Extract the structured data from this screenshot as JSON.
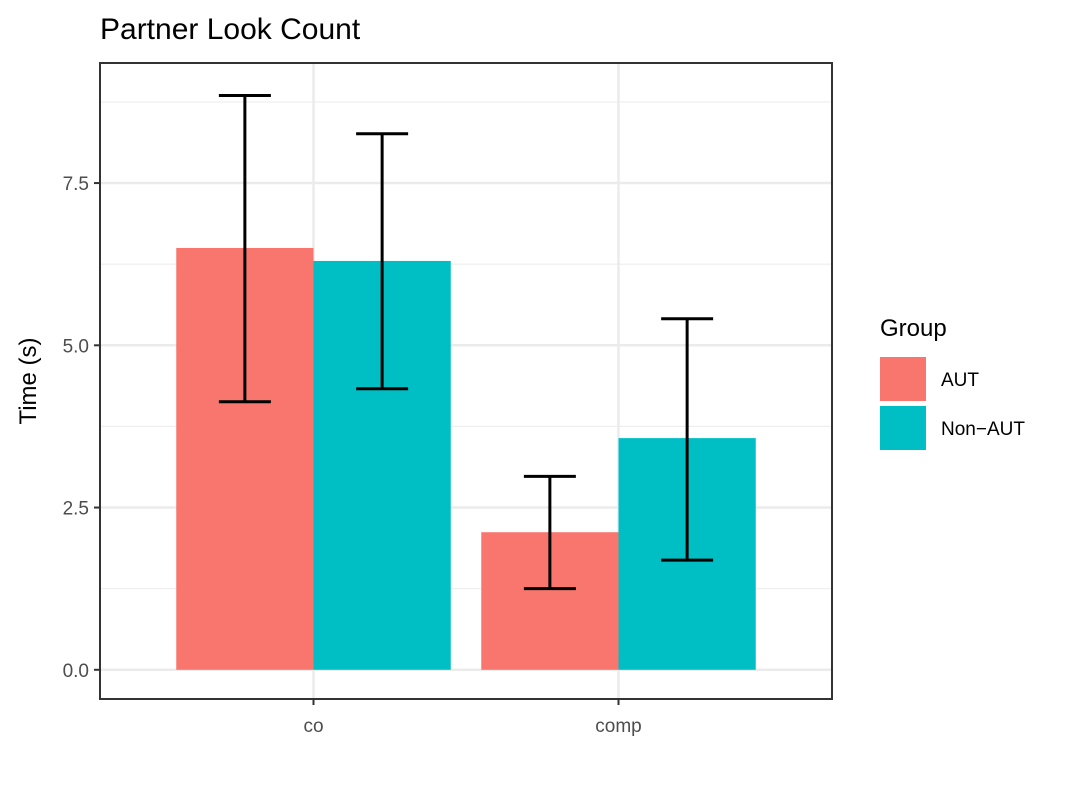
{
  "chart_data": {
    "type": "bar",
    "title": "Partner Look Count",
    "xlabel": "",
    "ylabel": "Time (s)",
    "categories": [
      "co",
      "comp"
    ],
    "series": [
      {
        "name": "AUT",
        "color": "#F8766D",
        "values": [
          6.5,
          2.12
        ],
        "error_low": [
          4.13,
          1.25
        ],
        "error_high": [
          8.85,
          2.98
        ]
      },
      {
        "name": "Non-AUT",
        "color": "#00BFC4",
        "values": [
          6.3,
          3.57
        ],
        "error_low": [
          4.33,
          1.69
        ],
        "error_high": [
          8.26,
          5.41
        ]
      }
    ],
    "ylim": [
      -0.45,
      9.35
    ],
    "yticks": [
      0.0,
      2.5,
      5.0,
      7.5
    ],
    "ytick_labels": [
      "0.0",
      "2.5",
      "5.0",
      "7.5"
    ],
    "grid": true,
    "legend": {
      "title": "Group",
      "position": "right",
      "labels": [
        "AUT",
        "Non−AUT"
      ]
    }
  }
}
